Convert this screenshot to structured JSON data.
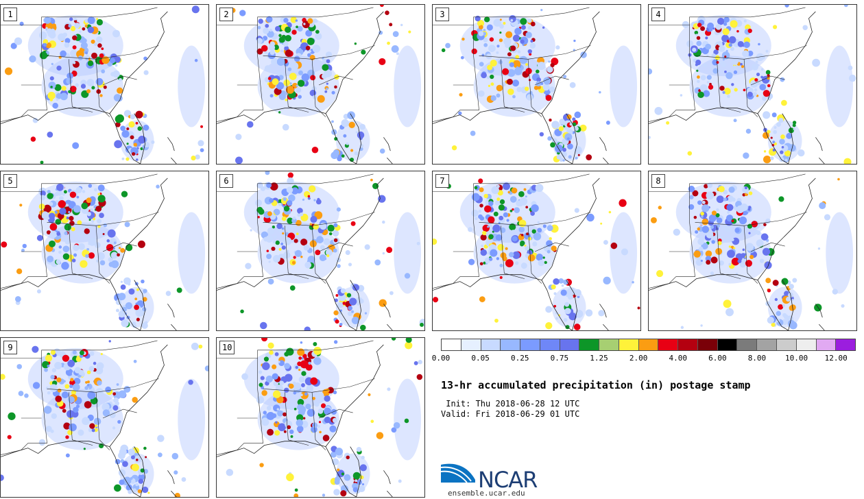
{
  "panels": [
    {
      "label": "1"
    },
    {
      "label": "2"
    },
    {
      "label": "3"
    },
    {
      "label": "4"
    },
    {
      "label": "5"
    },
    {
      "label": "6"
    },
    {
      "label": "7"
    },
    {
      "label": "8"
    },
    {
      "label": "9"
    },
    {
      "label": "10"
    }
  ],
  "colorbar": {
    "colors": [
      "#ffffff",
      "#e6f0ff",
      "#c8daff",
      "#98b8ff",
      "#7b9bff",
      "#6f87f7",
      "#6874ee",
      "#0d9628",
      "#a7cf72",
      "#fff23a",
      "#fb9d12",
      "#e80014",
      "#b40010",
      "#7a0008",
      "#000000",
      "#7b7b7b",
      "#a3a3a3",
      "#cccccc",
      "#eeeeee",
      "#e1a9f2",
      "#9b1ede"
    ],
    "tick_labels": [
      "0.00",
      "0.05",
      "0.25",
      "0.75",
      "1.25",
      "2.00",
      "4.00",
      "6.00",
      "8.00",
      "10.00",
      "12.00"
    ]
  },
  "title": "13-hr accumulated precipitation (in) postage stamp",
  "init_line": " Init: Thu 2018-06-28 12 UTC",
  "valid_line": "Valid: Fri 2018-06-29 01 UTC",
  "logo": {
    "text": "NCAR",
    "brand_color": "#1d3e74",
    "accent_color": "#0b73c2"
  },
  "url": "ensemble.ucar.edu"
}
